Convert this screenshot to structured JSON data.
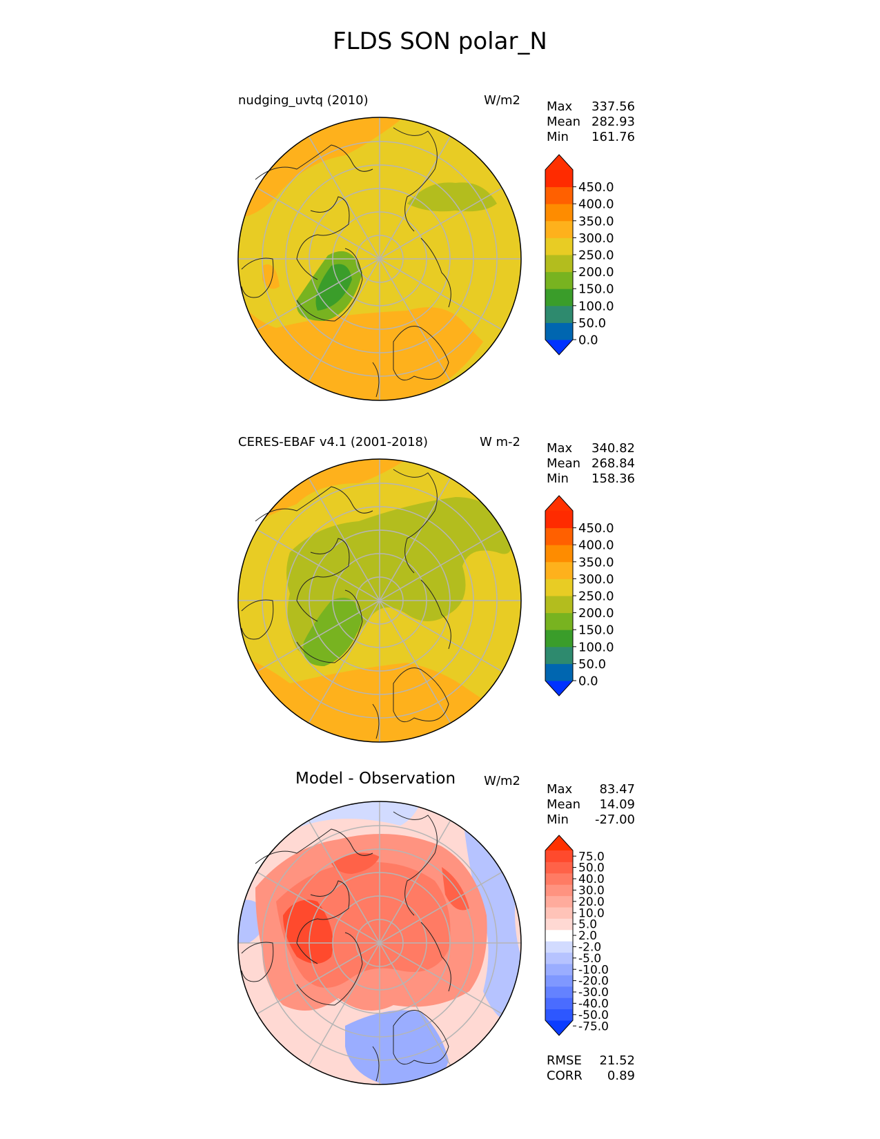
{
  "figure": {
    "title": "FLDS SON polar_N"
  },
  "panels": [
    {
      "title": "nudging_uvtq (2010)",
      "units": "W/m2",
      "stats": [
        {
          "label": "Max",
          "value": "337.56"
        },
        {
          "label": "Mean",
          "value": "282.93"
        },
        {
          "label": "Min",
          "value": "161.76"
        }
      ],
      "colorbar": {
        "ticks": [
          "450.0",
          "400.0",
          "350.0",
          "300.0",
          "250.0",
          "200.0",
          "150.0",
          "100.0",
          "50.0",
          "0.0"
        ],
        "colors": [
          "#0032ff",
          "#0066b0",
          "#2e8a6e",
          "#3a9d2a",
          "#78b320",
          "#b3bd1e",
          "#e8cc24",
          "#feb11c",
          "#fe8c00",
          "#ff6000",
          "#ff2b00",
          "#ff3200"
        ]
      }
    },
    {
      "title": "CERES-EBAF v4.1 (2001-2018)",
      "units": "W m-2",
      "stats": [
        {
          "label": "Max",
          "value": "340.82"
        },
        {
          "label": "Mean",
          "value": "268.84"
        },
        {
          "label": "Min",
          "value": "158.36"
        }
      ],
      "colorbar": {
        "ticks": [
          "450.0",
          "400.0",
          "350.0",
          "300.0",
          "250.0",
          "200.0",
          "150.0",
          "100.0",
          "50.0",
          "0.0"
        ],
        "colors": [
          "#0032ff",
          "#0066b0",
          "#2e8a6e",
          "#3a9d2a",
          "#78b320",
          "#b3bd1e",
          "#e8cc24",
          "#feb11c",
          "#fe8c00",
          "#ff6000",
          "#ff2b00",
          "#ff3200"
        ]
      }
    },
    {
      "title": "Model - Observation",
      "units": "W/m2",
      "stats": [
        {
          "label": "Max",
          "value": "83.47"
        },
        {
          "label": "Mean",
          "value": "14.09"
        },
        {
          "label": "Min",
          "value": "-27.00"
        }
      ],
      "colorbar": {
        "ticks": [
          "75.0",
          "50.0",
          "40.0",
          "30.0",
          "20.0",
          "10.0",
          "5.0",
          "2.0",
          "-2.0",
          "-5.0",
          "-10.0",
          "-20.0",
          "-30.0",
          "-40.0",
          "-50.0",
          "-75.0"
        ],
        "colors": [
          "#0b3cff",
          "#2d57ff",
          "#4a6cff",
          "#6482ff",
          "#7f98ff",
          "#9aadff",
          "#b6c3ff",
          "#d2dbff",
          "#ffffff",
          "#ffd9d3",
          "#ffc3b8",
          "#ffab9c",
          "#ff9380",
          "#ff7b64",
          "#ff6248",
          "#ff4a2d",
          "#ff3200"
        ]
      },
      "metrics": [
        {
          "label": "RMSE",
          "value": "21.52"
        },
        {
          "label": "CORR",
          "value": "0.89"
        }
      ]
    }
  ],
  "chart_data": [
    {
      "type": "heatmap",
      "title": "nudging_uvtq (2010)",
      "projection": "north polar stereographic",
      "units": "W/m2",
      "levels": [
        0,
        50,
        100,
        150,
        200,
        250,
        300,
        350,
        400,
        450
      ],
      "extend": "both",
      "max": 337.56,
      "mean": 282.93,
      "min": 161.76
    },
    {
      "type": "heatmap",
      "title": "CERES-EBAF v4.1 (2001-2018)",
      "projection": "north polar stereographic",
      "units": "W m-2",
      "levels": [
        0,
        50,
        100,
        150,
        200,
        250,
        300,
        350,
        400,
        450
      ],
      "extend": "both",
      "max": 340.82,
      "mean": 268.84,
      "min": 158.36
    },
    {
      "type": "heatmap",
      "title": "Model - Observation",
      "projection": "north polar stereographic",
      "units": "W/m2",
      "levels": [
        -75,
        -50,
        -40,
        -30,
        -20,
        -10,
        -5,
        -2,
        2,
        5,
        10,
        20,
        30,
        40,
        50,
        75
      ],
      "extend": "both",
      "max": 83.47,
      "mean": 14.09,
      "min": -27.0,
      "rmse": 21.52,
      "corr": 0.89
    }
  ]
}
